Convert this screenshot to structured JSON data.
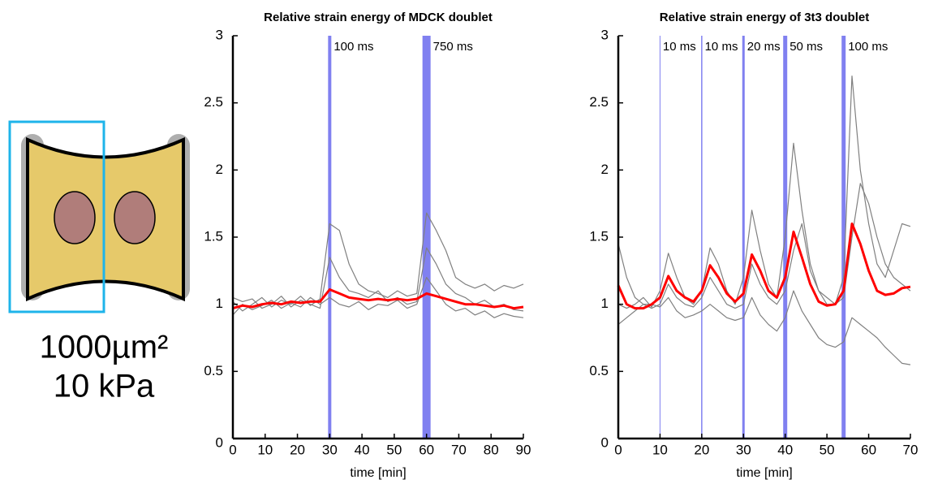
{
  "illustration": {
    "area": "1000µm²",
    "stiffness": "10 kPa"
  },
  "chart_data": [
    {
      "type": "line",
      "title": "Relative strain energy of MDCK doublet",
      "x_label": "time [min]",
      "x": [
        0,
        3,
        6,
        9,
        12,
        15,
        18,
        21,
        24,
        27,
        30,
        33,
        36,
        39,
        42,
        45,
        48,
        51,
        54,
        57,
        60,
        63,
        66,
        69,
        72,
        75,
        78,
        81,
        84,
        87,
        90
      ],
      "series": [
        {
          "color": "#808080",
          "values": [
            1.02,
            0.95,
            1.0,
            1.05,
            0.98,
            1.03,
            1.0,
            1.06,
            0.99,
            1.04,
            1.6,
            1.55,
            1.3,
            1.15,
            1.1,
            1.08,
            1.05,
            1.1,
            1.06,
            1.08,
            1.68,
            1.55,
            1.4,
            1.2,
            1.15,
            1.12,
            1.15,
            1.1,
            1.14,
            1.12,
            1.15
          ]
        },
        {
          "color": "#808080",
          "values": [
            0.92,
            1.0,
            0.96,
            0.99,
            1.03,
            0.97,
            1.01,
            0.98,
            1.05,
            1.0,
            1.05,
            1.0,
            0.98,
            1.02,
            0.96,
            1.0,
            0.99,
            1.03,
            0.97,
            1.0,
            1.2,
            1.1,
            1.0,
            0.95,
            0.97,
            0.92,
            0.95,
            0.9,
            0.93,
            0.91,
            0.9
          ]
        },
        {
          "color": "#808080",
          "values": [
            1.05,
            1.02,
            1.04,
            0.97,
            1.0,
            1.06,
            0.98,
            1.03,
            1.0,
            0.97,
            1.35,
            1.2,
            1.1,
            1.08,
            1.05,
            1.1,
            1.02,
            1.05,
            1.0,
            1.02,
            1.42,
            1.3,
            1.15,
            1.08,
            1.05,
            1.0,
            1.03,
            0.98,
            1.0,
            0.96,
            0.95
          ]
        },
        {
          "color": "#ff0000",
          "values": [
            0.97,
            0.99,
            0.98,
            1.0,
            1.01,
            1.0,
            1.02,
            1.01,
            1.02,
            1.02,
            1.11,
            1.08,
            1.05,
            1.04,
            1.03,
            1.04,
            1.03,
            1.04,
            1.03,
            1.04,
            1.08,
            1.06,
            1.04,
            1.02,
            1.0,
            1.0,
            0.99,
            0.98,
            0.99,
            0.97,
            0.98
          ]
        }
      ],
      "stimulations": [
        {
          "x": 30,
          "label": "100 ms"
        },
        {
          "x": 60,
          "label": "750 ms"
        }
      ],
      "stimulation_color": "#8080f0",
      "xlim": [
        0,
        90
      ],
      "xticks": [
        0,
        10,
        20,
        30,
        40,
        50,
        60,
        70,
        80,
        90
      ],
      "ylim": [
        0,
        3
      ],
      "yticks": [
        0,
        0.5,
        1,
        1.5,
        2,
        2.5,
        3
      ]
    },
    {
      "type": "line",
      "title": "Relative strain energy of 3t3 doublet",
      "x_label": "time [min]",
      "x": [
        0,
        2,
        4,
        6,
        8,
        10,
        12,
        14,
        16,
        18,
        20,
        22,
        24,
        26,
        28,
        30,
        32,
        34,
        36,
        38,
        40,
        42,
        44,
        46,
        48,
        50,
        52,
        54,
        56,
        58,
        60,
        62,
        64,
        66,
        68,
        70
      ],
      "series": [
        {
          "color": "#808080",
          "values": [
            1.0,
            0.97,
            1.0,
            1.05,
            0.98,
            1.1,
            1.38,
            1.2,
            1.05,
            1.0,
            1.1,
            1.42,
            1.3,
            1.1,
            1.0,
            1.2,
            1.7,
            1.4,
            1.15,
            1.05,
            1.5,
            2.2,
            1.7,
            1.3,
            1.1,
            1.05,
            1.0,
            1.2,
            2.7,
            2.0,
            1.6,
            1.3,
            1.2,
            1.4,
            1.6,
            1.58
          ]
        },
        {
          "color": "#808080",
          "values": [
            0.85,
            0.9,
            0.95,
            1.0,
            1.0,
            0.98,
            1.05,
            0.95,
            0.9,
            0.92,
            0.95,
            1.0,
            0.95,
            0.9,
            0.88,
            0.9,
            1.05,
            0.92,
            0.85,
            0.8,
            0.9,
            1.1,
            0.95,
            0.85,
            0.75,
            0.7,
            0.68,
            0.72,
            0.9,
            0.85,
            0.8,
            0.75,
            0.68,
            0.62,
            0.56,
            0.55
          ]
        },
        {
          "color": "#808080",
          "values": [
            1.45,
            1.2,
            1.05,
            1.0,
            0.97,
            1.0,
            1.15,
            1.05,
            1.0,
            0.98,
            1.05,
            1.2,
            1.1,
            1.0,
            0.97,
            1.0,
            1.3,
            1.15,
            1.05,
            1.0,
            1.1,
            1.4,
            1.6,
            1.25,
            1.1,
            1.0,
            1.0,
            1.05,
            1.5,
            1.9,
            1.75,
            1.5,
            1.3,
            1.2,
            1.15,
            1.1
          ]
        },
        {
          "color": "#ff0000",
          "values": [
            1.14,
            1.0,
            0.97,
            0.97,
            1.0,
            1.05,
            1.21,
            1.1,
            1.05,
            1.02,
            1.1,
            1.29,
            1.2,
            1.08,
            1.02,
            1.08,
            1.37,
            1.25,
            1.1,
            1.05,
            1.2,
            1.54,
            1.35,
            1.15,
            1.02,
            0.99,
            1.0,
            1.1,
            1.6,
            1.45,
            1.25,
            1.1,
            1.07,
            1.08,
            1.12,
            1.13
          ]
        }
      ],
      "stimulations": [
        {
          "x": 10,
          "label": "10 ms"
        },
        {
          "x": 20,
          "label": "10 ms"
        },
        {
          "x": 30,
          "label": "20 ms"
        },
        {
          "x": 40,
          "label": "50 ms"
        },
        {
          "x": 54,
          "label": "100 ms"
        }
      ],
      "stimulation_color": "#8080f0",
      "xlim": [
        0,
        70
      ],
      "xticks": [
        0,
        10,
        20,
        30,
        40,
        50,
        60,
        70
      ],
      "ylim": [
        0,
        3
      ],
      "yticks": [
        0,
        0.5,
        1,
        1.5,
        2,
        2.5,
        3
      ]
    }
  ]
}
